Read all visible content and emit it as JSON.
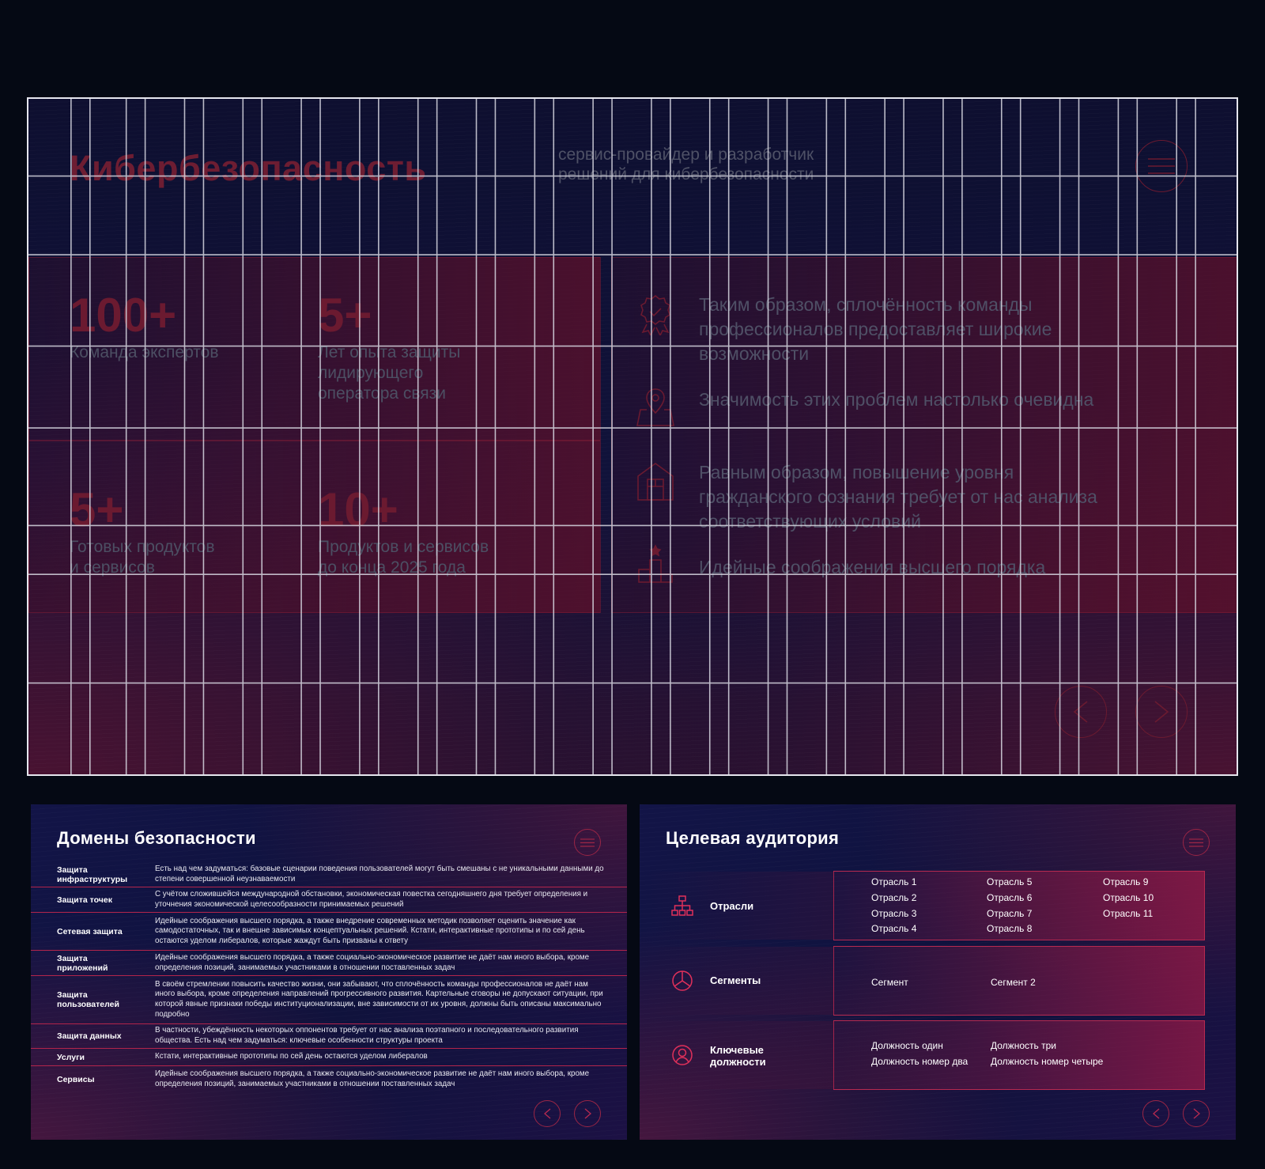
{
  "hero": {
    "title": "Кибербезопасность",
    "subtitle_line1": "сервис-провайдер и разработчик",
    "subtitle_line2": "решений для кибербезопасности",
    "stats": [
      {
        "value": "100+",
        "label": "Команда экспертов"
      },
      {
        "value": "5+",
        "label": "Лет опыта защиты\nлидирующего\nоператора связи"
      },
      {
        "value": "5+",
        "label": "Готовых продуктов\nи сервисов"
      },
      {
        "value": "10+",
        "label": "Продуктов и сервисов\nдо конца 2025 года"
      }
    ],
    "features": [
      {
        "icon": "award-badge-icon",
        "text": "Таким образом, сплочённость команды профессионалов предоставляет широкие возможности"
      },
      {
        "icon": "map-pin-icon",
        "text": "Значимость этих проблем настолько очевидна"
      },
      {
        "icon": "building-icon",
        "text": "Равным образом, повышение уровня гражданского сознания требует от нас анализа соответствующих условий"
      },
      {
        "icon": "podium-icon",
        "text": "Идейные соображения высшего порядка"
      }
    ]
  },
  "domains": {
    "title": "Домены безопасности",
    "rows": [
      {
        "name": "Защита инфраструктуры",
        "desc": "Есть над чем задуматься: базовые сценарии поведения пользователей могут быть смешаны с не уникальными данными до степени совершенной неузнаваемости"
      },
      {
        "name": "Защита точек",
        "desc": "С учётом сложившейся международной обстановки, экономическая повестка сегодняшнего дня требует определения и уточнения экономической целесообразности принимаемых решений"
      },
      {
        "name": "Сетевая защита",
        "desc": "Идейные соображения высшего порядка, а также внедрение современных методик позволяет оценить значение как самодостаточных, так и внешне зависимых концептуальных решений. Кстати, интерактивные прототипы и по сей день остаются уделом либералов, которые жаждут быть призваны к ответу"
      },
      {
        "name": "Защита приложений",
        "desc": "Идейные соображения высшего порядка, а также социально-экономическое развитие не даёт нам иного выбора, кроме определения позиций, занимаемых участниками в отношении поставленных задач"
      },
      {
        "name": "Защита пользователей",
        "desc": "В своём стремлении повысить качество жизни, они забывают, что сплочённость команды профессионалов не даёт нам иного выбора, кроме определения направлений прогрессивного развития. Картельные сговоры не допускают ситуации, при которой явные признаки победы институционализации, вне зависимости от их уровня, должны быть описаны максимально подробно"
      },
      {
        "name": "Защита данных",
        "desc": "В частности, убеждённость некоторых оппонентов требует от нас анализа поэтапного и последовательного развития общества. Есть над чем задуматься: ключевые особенности структуры проекта"
      },
      {
        "name": "Услуги",
        "desc": "Кстати, интерактивные прототипы по сей день остаются уделом либералов"
      },
      {
        "name": "Сервисы",
        "desc": "Идейные соображения высшего порядка, а также социально-экономическое развитие не даёт нам иного выбора, кроме определения позиций, занимаемых участниками в отношении поставленных задач"
      }
    ]
  },
  "audience": {
    "title": "Целевая аудитория",
    "groups": [
      {
        "label": "Отрасли",
        "icon": "hierarchy-icon",
        "items": [
          "Отрасль 1",
          "Отрасль 2",
          "Отрасль 3",
          "Отрасль 4",
          "Отрасль 5",
          "Отрасль 6",
          "Отрасль 7",
          "Отрасль 8",
          "Отрасль 9",
          "Отрасль 10",
          "Отрасль 11"
        ]
      },
      {
        "label": "Сегменты",
        "icon": "pie-segments-icon",
        "items": [
          "Сегмент",
          "Сегмент 2"
        ]
      },
      {
        "label": "Ключевые\nдолжности",
        "icon": "user-circle-icon",
        "items": [
          "Должность один",
          "Должность номер два",
          "Должность три",
          "Должность номер четыре"
        ]
      }
    ]
  },
  "colors": {
    "accent": "#b72a50",
    "background": "#050914",
    "grid": "#e6e6ee"
  }
}
